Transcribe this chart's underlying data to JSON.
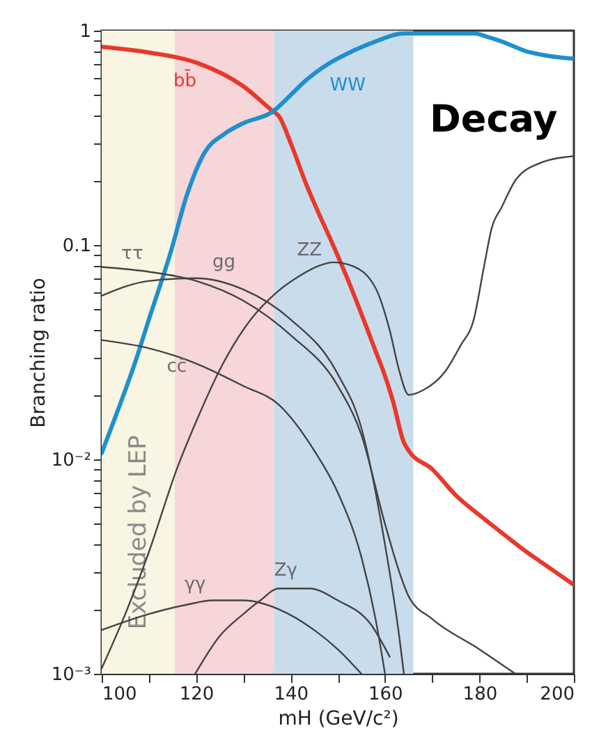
{
  "chart_data": {
    "type": "line",
    "title": "Decay",
    "xlabel": "mH (GeV/c²)",
    "ylabel": "Branching ratio",
    "log": "y",
    "grid": false,
    "marker": "none",
    "line_style": "solid",
    "xlim": [
      100,
      200
    ],
    "ylim": [
      0.001,
      1
    ],
    "xticks": [
      100,
      {
        "value": 110,
        "label": null
      },
      120,
      {
        "value": 130,
        "label": null
      },
      140,
      {
        "value": 150,
        "label": null
      },
      160,
      {
        "value": 170,
        "label": null
      },
      180,
      {
        "value": 190,
        "label": null
      },
      200
    ],
    "yticks": [
      {
        "value": 0.001,
        "label": "10⁻³"
      },
      {
        "value": 0.002,
        "label": null
      },
      {
        "value": 0.003,
        "label": null
      },
      {
        "value": 0.004,
        "label": null
      },
      {
        "value": 0.005,
        "label": null
      },
      {
        "value": 0.006,
        "label": null
      },
      {
        "value": 0.007,
        "label": null
      },
      {
        "value": 0.008,
        "label": null
      },
      {
        "value": 0.009,
        "label": null
      },
      {
        "value": 0.01,
        "label": "10⁻²"
      },
      {
        "value": 0.02,
        "label": null
      },
      {
        "value": 0.03,
        "label": null
      },
      {
        "value": 0.04,
        "label": null
      },
      {
        "value": 0.05,
        "label": null
      },
      {
        "value": 0.06,
        "label": null
      },
      {
        "value": 0.07,
        "label": null
      },
      {
        "value": 0.08,
        "label": null
      },
      {
        "value": 0.09,
        "label": null
      },
      0.1,
      {
        "value": 0.2,
        "label": null
      },
      {
        "value": 0.3,
        "label": null
      },
      {
        "value": 0.4,
        "label": null
      },
      {
        "value": 0.5,
        "label": null
      },
      {
        "value": 0.6,
        "label": null
      },
      {
        "value": 0.7,
        "label": null
      },
      {
        "value": 0.8,
        "label": null
      },
      {
        "value": 0.9,
        "label": null
      },
      1
    ],
    "bands": [
      {
        "axis": "x",
        "from": 100,
        "to": 115.5,
        "label": "Excluded by LEP",
        "color": "#f8f5e2"
      },
      {
        "axis": "x",
        "from": 115.5,
        "to": 136.5,
        "label": null,
        "color": "#f7d6da"
      },
      {
        "axis": "x",
        "from": 136.5,
        "to": 166,
        "label": null,
        "color": "#c9dcec"
      }
    ],
    "series": [
      {
        "name": "bb̄",
        "color": "#e8392a",
        "x": [
          100,
          110,
          120,
          130,
          136.3,
          137.5,
          140,
          143.4,
          146,
          149,
          152,
          155.8,
          158,
          159.6,
          161.6,
          164,
          165,
          170,
          175,
          180,
          185,
          190,
          195,
          200
        ],
        "values": [
          0.84,
          0.79,
          0.71,
          0.55,
          0.42,
          0.4,
          0.3,
          0.19,
          0.14,
          0.1,
          0.07,
          0.043,
          0.032,
          0.026,
          0.019,
          0.012,
          0.011,
          0.009,
          0.0068,
          0.0055,
          0.0045,
          0.0037,
          0.0031,
          0.0026
        ]
      },
      {
        "name": "WW",
        "color": "#1f8fce",
        "x": [
          100,
          103,
          107,
          110,
          114.7,
          118,
          121.8,
          126,
          130,
          136.3,
          140,
          143.4,
          148,
          153,
          158,
          164,
          170,
          178.8,
          182,
          184.7,
          190,
          195,
          200
        ],
        "values": [
          0.0107,
          0.016,
          0.028,
          0.045,
          0.094,
          0.17,
          0.27,
          0.33,
          0.37,
          0.42,
          0.5,
          0.59,
          0.7,
          0.8,
          0.89,
          0.97,
          0.97,
          0.97,
          0.93,
          0.89,
          0.8,
          0.76,
          0.74
        ]
      },
      {
        "name": "ZZ",
        "color": "#444444",
        "x": [
          100,
          105,
          110,
          115.9,
          120,
          125.7,
          131.6,
          137,
          142,
          146,
          149,
          153,
          158,
          161,
          163,
          165,
          168,
          172.9,
          176,
          178.8,
          181,
          182.6,
          184.7,
          187.6,
          192.6,
          200
        ],
        "values": [
          0.00106,
          0.0019,
          0.0037,
          0.009,
          0.015,
          0.028,
          0.045,
          0.06,
          0.072,
          0.08,
          0.083,
          0.08,
          0.063,
          0.04,
          0.026,
          0.02,
          0.021,
          0.026,
          0.034,
          0.045,
          0.08,
          0.12,
          0.15,
          0.2,
          0.24,
          0.26
        ]
      },
      {
        "name": "ττ",
        "color": "#444444",
        "x": [
          100,
          110,
          120,
          130,
          140,
          150,
          155,
          160,
          163,
          165,
          170,
          180,
          187.6
        ],
        "values": [
          0.079,
          0.075,
          0.068,
          0.055,
          0.038,
          0.022,
          0.013,
          0.005,
          0.003,
          0.0023,
          0.0018,
          0.0013,
          0.001
        ]
      },
      {
        "name": "gg",
        "color": "#444444",
        "x": [
          100,
          110,
          120,
          130,
          140,
          150,
          155,
          160,
          163,
          164
        ],
        "values": [
          0.058,
          0.068,
          0.07,
          0.062,
          0.045,
          0.025,
          0.014,
          0.004,
          0.0015,
          0.001
        ]
      },
      {
        "name": "cc̄",
        "color": "#444444",
        "x": [
          100,
          110,
          120,
          130,
          137.5,
          145,
          150,
          155,
          158,
          160
        ],
        "values": [
          0.036,
          0.033,
          0.028,
          0.022,
          0.018,
          0.011,
          0.007,
          0.0035,
          0.0018,
          0.001
        ]
      },
      {
        "name": "γγ",
        "color": "#444444",
        "x": [
          100,
          110,
          118,
          123.6,
          130,
          137.5,
          145,
          150,
          155
        ],
        "values": [
          0.0016,
          0.0019,
          0.0021,
          0.0022,
          0.0022,
          0.002,
          0.0016,
          0.0013,
          0.001
        ]
      },
      {
        "name": "Zγ",
        "color": "#444444",
        "x": [
          119.8,
          125,
          130,
          133.6,
          137.5,
          144,
          150,
          157,
          161
        ],
        "values": [
          0.001,
          0.0015,
          0.0019,
          0.0022,
          0.0025,
          0.0025,
          0.0022,
          0.0017,
          0.0012
        ]
      }
    ]
  }
}
